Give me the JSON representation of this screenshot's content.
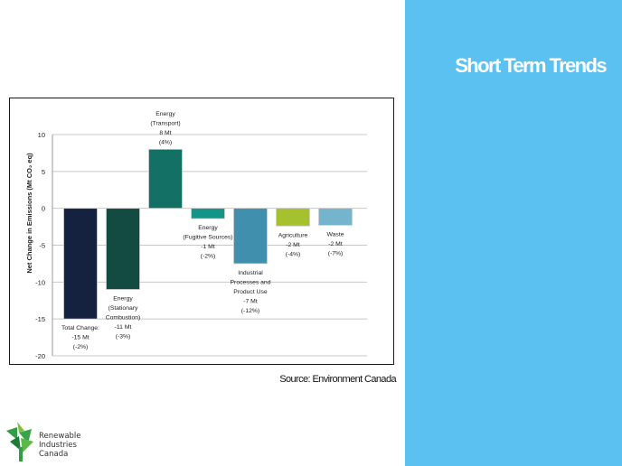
{
  "slide": {
    "title": "Short Term Trends",
    "source": "Source: Environment Canada",
    "logo_lines": [
      "Renewable",
      "Industries",
      "Canada"
    ],
    "panel_color": "#5bc1f1"
  },
  "chart_data": {
    "type": "bar",
    "ylabel": "Net Change in Emissions (Mt CO₂ eq)",
    "ylim": [
      -20,
      10
    ],
    "yticks": [
      10,
      5,
      0,
      -5,
      -10,
      -15,
      -20
    ],
    "grid": true,
    "categories": [
      {
        "label": [
          "Total Change:",
          "-15 Mt",
          "(-2%)"
        ],
        "value": -15,
        "color": "#15223f"
      },
      {
        "label": [
          "Energy",
          "(Stationary",
          "Combustion)",
          "-11 Mt",
          "(-3%)"
        ],
        "value": -11,
        "color": "#134a42"
      },
      {
        "label": [
          "Energy",
          "(Transport)",
          "8 Mt",
          "(4%)"
        ],
        "value": 8,
        "color": "#137065"
      },
      {
        "label": [
          "Energy",
          "(Fugitive Sources)",
          "-1 Mt",
          "(-2%)"
        ],
        "value": -1.4,
        "color": "#129488"
      },
      {
        "label": [
          "Industrial",
          "Processes and",
          "Product Use",
          "-7 Mt",
          "(-12%)"
        ],
        "value": -7.5,
        "color": "#3f8fad"
      },
      {
        "label": [
          "Agriculture",
          "-2 Mt",
          "(-4%)"
        ],
        "value": -2.4,
        "color": "#a6c12e"
      },
      {
        "label": [
          "Waste",
          "-2 Mt",
          "(-7%)"
        ],
        "value": -2.3,
        "color": "#74b4cc"
      }
    ]
  }
}
